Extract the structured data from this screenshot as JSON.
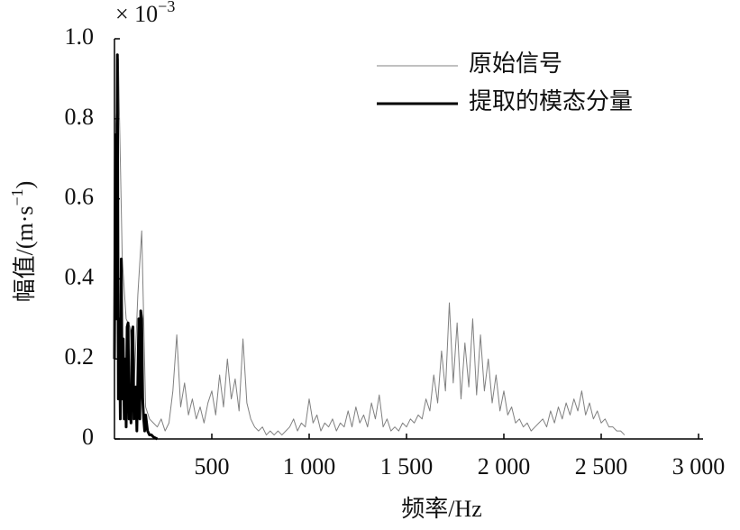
{
  "chart_data": {
    "type": "line",
    "multiplier": "× 10",
    "multiplier_exp": "−3",
    "ylabel": "幅值/(m·s",
    "ylabel_exp": "−1",
    "ylabel_end": ")",
    "xlabel": "频率/Hz",
    "xlim": [
      0,
      3000
    ],
    "ylim": [
      0,
      1
    ],
    "xticks": [
      500,
      {
        "value": 1000,
        "label": "1 000"
      },
      {
        "value": 1500,
        "label": "1 500"
      },
      {
        "value": 2000,
        "label": "2 000"
      },
      {
        "value": 2500,
        "label": "2 500"
      },
      {
        "value": 3000,
        "label": "3 000"
      }
    ],
    "yticks": [
      0,
      0.2,
      0.4,
      0.6,
      0.8,
      {
        "value": 1,
        "label": "1.0"
      }
    ],
    "legend": "upper right",
    "series": [
      {
        "name": "原始信号",
        "color": "#808080",
        "width": 1,
        "x": [
          0,
          20,
          40,
          60,
          80,
          100,
          120,
          140,
          160,
          180,
          200,
          220,
          240,
          260,
          280,
          300,
          320,
          340,
          360,
          380,
          400,
          420,
          440,
          460,
          480,
          500,
          520,
          540,
          560,
          580,
          600,
          620,
          640,
          660,
          680,
          700,
          720,
          740,
          760,
          780,
          800,
          820,
          840,
          860,
          880,
          900,
          920,
          940,
          960,
          980,
          1000,
          1020,
          1040,
          1060,
          1080,
          1100,
          1120,
          1140,
          1160,
          1180,
          1200,
          1220,
          1240,
          1260,
          1280,
          1300,
          1320,
          1340,
          1360,
          1380,
          1400,
          1420,
          1440,
          1460,
          1480,
          1500,
          1520,
          1540,
          1560,
          1580,
          1600,
          1620,
          1640,
          1660,
          1680,
          1700,
          1720,
          1740,
          1760,
          1780,
          1800,
          1820,
          1840,
          1860,
          1880,
          1900,
          1920,
          1940,
          1960,
          1980,
          2000,
          2020,
          2040,
          2060,
          2080,
          2100,
          2120,
          2140,
          2160,
          2180,
          2200,
          2220,
          2240,
          2260,
          2280,
          2300,
          2320,
          2340,
          2360,
          2380,
          2400,
          2420,
          2440,
          2460,
          2480,
          2500,
          2520,
          2540,
          2560,
          2580,
          2600,
          2620
        ],
        "values": [
          0.7,
          0.95,
          0.45,
          0.3,
          0.28,
          0.12,
          0.36,
          0.52,
          0.08,
          0.05,
          0.04,
          0.03,
          0.05,
          0.02,
          0.04,
          0.12,
          0.26,
          0.08,
          0.14,
          0.06,
          0.1,
          0.05,
          0.08,
          0.04,
          0.09,
          0.12,
          0.06,
          0.16,
          0.08,
          0.2,
          0.1,
          0.15,
          0.07,
          0.25,
          0.09,
          0.05,
          0.03,
          0.02,
          0.03,
          0.01,
          0.02,
          0.01,
          0.02,
          0.01,
          0.02,
          0.03,
          0.05,
          0.02,
          0.04,
          0.03,
          0.1,
          0.04,
          0.06,
          0.02,
          0.04,
          0.03,
          0.05,
          0.02,
          0.04,
          0.03,
          0.07,
          0.03,
          0.08,
          0.04,
          0.06,
          0.03,
          0.09,
          0.05,
          0.11,
          0.03,
          0.05,
          0.02,
          0.03,
          0.02,
          0.04,
          0.03,
          0.05,
          0.04,
          0.06,
          0.05,
          0.1,
          0.07,
          0.16,
          0.09,
          0.22,
          0.12,
          0.34,
          0.14,
          0.29,
          0.1,
          0.24,
          0.13,
          0.3,
          0.11,
          0.26,
          0.12,
          0.2,
          0.09,
          0.16,
          0.07,
          0.12,
          0.06,
          0.08,
          0.04,
          0.05,
          0.03,
          0.04,
          0.02,
          0.03,
          0.04,
          0.05,
          0.03,
          0.07,
          0.04,
          0.08,
          0.05,
          0.09,
          0.06,
          0.1,
          0.07,
          0.12,
          0.06,
          0.09,
          0.05,
          0.07,
          0.04,
          0.05,
          0.03,
          0.03,
          0.02,
          0.02,
          0.01
        ]
      },
      {
        "name": "提取的模态分量",
        "color": "#000000",
        "width": 3,
        "x": [
          0,
          5,
          10,
          15,
          20,
          25,
          30,
          35,
          40,
          45,
          50,
          55,
          60,
          65,
          70,
          75,
          80,
          85,
          90,
          95,
          100,
          105,
          110,
          115,
          120,
          125,
          130,
          135,
          140,
          145,
          150,
          155,
          160,
          170,
          180,
          190,
          200,
          220
        ],
        "values": [
          0.2,
          0.76,
          0.3,
          0.96,
          0.1,
          0.3,
          0.05,
          0.45,
          0.1,
          0.25,
          0.05,
          0.2,
          0.03,
          0.28,
          0.29,
          0.05,
          0.1,
          0.04,
          0.27,
          0.28,
          0.05,
          0.08,
          0.13,
          0.02,
          0.15,
          0.3,
          0.05,
          0.32,
          0.3,
          0.1,
          0.05,
          0.02,
          0.06,
          0.02,
          0.01,
          0.01,
          0.005,
          0
        ]
      }
    ]
  }
}
